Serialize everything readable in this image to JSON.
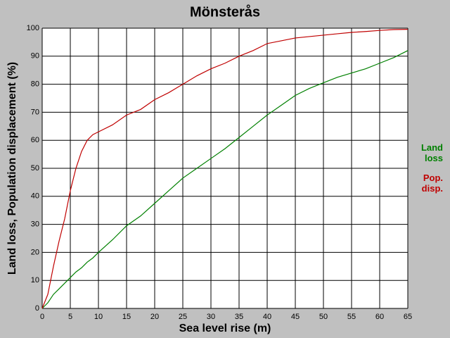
{
  "chart_data": {
    "type": "line",
    "title": "Mönsterås",
    "xlabel": "Sea level rise (m)",
    "ylabel": "Land loss, Population displacement (%)",
    "x": [
      0,
      1,
      2,
      3,
      4,
      5,
      6,
      7,
      8,
      9,
      10,
      12.5,
      15,
      17.5,
      20,
      22.5,
      25,
      27.5,
      30,
      32.5,
      35,
      37.5,
      40,
      42.5,
      45,
      47.5,
      50,
      52.5,
      55,
      57.5,
      60,
      62.5,
      65
    ],
    "series": [
      {
        "name": "Land loss",
        "color": "#008000",
        "values": [
          0,
          2,
          5,
          7,
          9,
          11,
          13,
          14.5,
          16.5,
          18,
          20,
          24.5,
          29.5,
          33,
          37.5,
          42,
          46.5,
          50,
          53.5,
          57,
          61,
          65,
          69,
          72.5,
          76,
          78.5,
          80.5,
          82.5,
          84,
          85.5,
          87.5,
          89.5,
          92
        ]
      },
      {
        "name": "Pop. disp.",
        "color": "#c00000",
        "values": [
          0,
          5,
          15,
          24,
          32,
          42,
          50,
          56,
          60,
          62,
          63,
          65.5,
          69,
          71,
          74.5,
          77,
          80,
          83,
          85.5,
          87.5,
          90,
          92,
          94.5,
          95.5,
          96.5,
          97,
          97.5,
          98,
          98.5,
          98.8,
          99.2,
          99.5,
          99.6
        ]
      }
    ],
    "xlim": [
      0,
      65
    ],
    "xticks": [
      0,
      5,
      10,
      15,
      20,
      25,
      30,
      35,
      40,
      45,
      50,
      55,
      60,
      65
    ],
    "ylim": [
      0,
      100
    ],
    "yticks": [
      0,
      10,
      20,
      30,
      40,
      50,
      60,
      70,
      80,
      90,
      100
    ],
    "grid": true
  }
}
